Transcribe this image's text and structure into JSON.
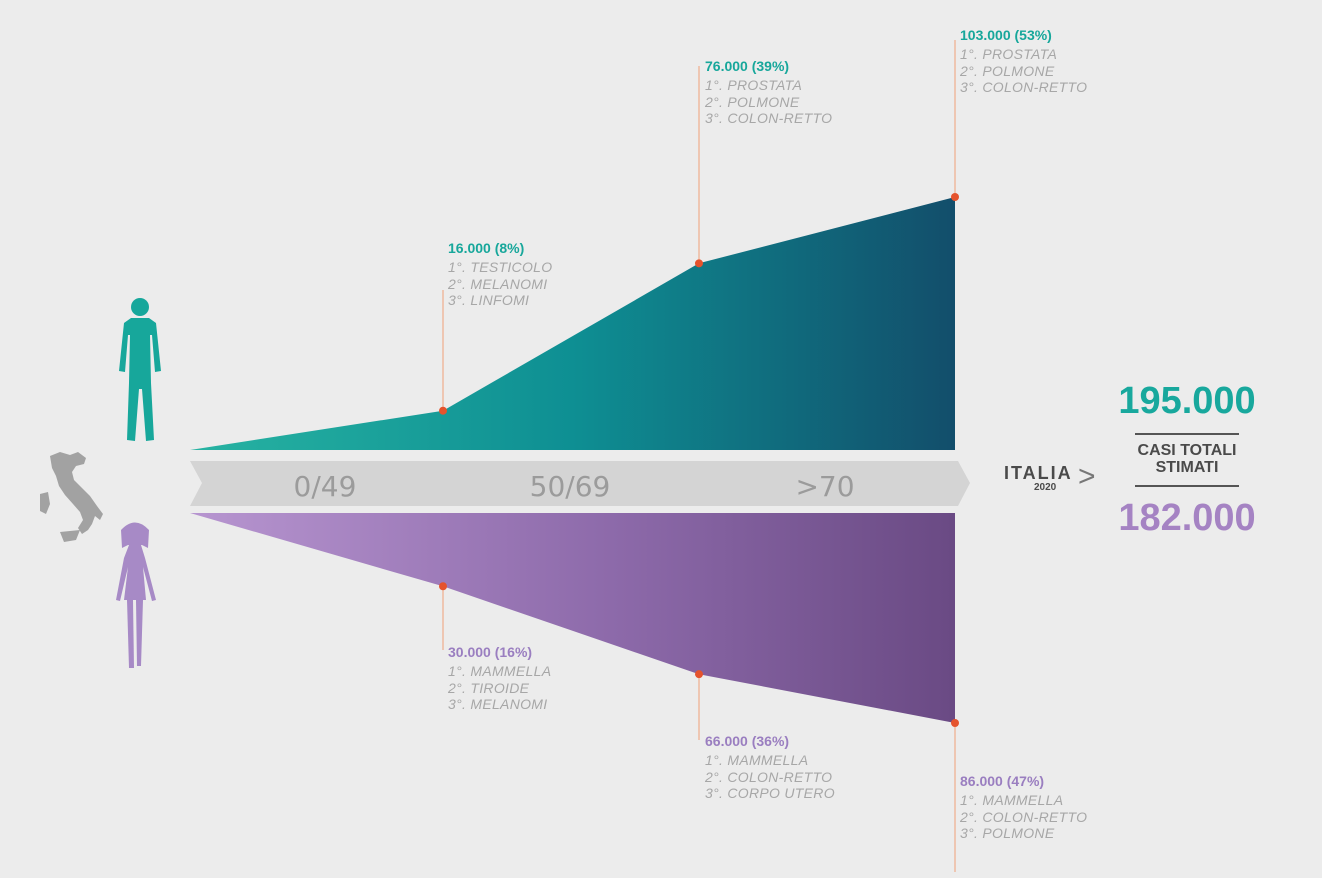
{
  "chart_data": {
    "type": "area",
    "title": "",
    "categories": [
      "0/49",
      "50/69",
      ">70"
    ],
    "series": [
      {
        "name": "",
        "color": "#17a79b",
        "values": [
          16000,
          76000,
          103000
        ],
        "points": [
          {
            "value": "16.000 (8%)",
            "ranks": [
              "1°. TESTICOLO",
              "2°. MELANOMI",
              "3°. LINFOMI"
            ]
          },
          {
            "value": "76.000 (39%)",
            "ranks": [
              "1°. PROSTATA",
              "2°. POLMONE",
              "3°. COLON-RETTO"
            ]
          },
          {
            "value": "103.000 (53%)",
            "ranks": [
              "1°. PROSTATA",
              "2°. POLMONE",
              "3°. COLON-RETTO"
            ]
          }
        ]
      },
      {
        "name": "",
        "color": "#9a7ec0",
        "values": [
          30000,
          66000,
          86000
        ],
        "points": [
          {
            "value": "30.000 (16%)",
            "ranks": [
              "1°. MAMMELLA",
              "2°. TIROIDE",
              "3°. MELANOMI"
            ]
          },
          {
            "value": "66.000 (36%)",
            "ranks": [
              "1°. MAMMELLA",
              "2°. COLON-RETTO",
              "3°. CORPO UTERO"
            ]
          },
          {
            "value": "86.000 (47%)",
            "ranks": [
              "1°. MAMMELLA",
              "2°. COLON-RETTO",
              "3°. POLMONE"
            ]
          }
        ]
      }
    ],
    "grid": false
  },
  "summary": {
    "country": "ITALIA",
    "year": "2020",
    "arrow": ">",
    "total_male": "195.000",
    "total_label": "CASI TOTALI STIMATI",
    "total_female": "182.000"
  },
  "icons": [
    "male-figure-icon",
    "female-figure-icon",
    "italy-map-icon"
  ]
}
